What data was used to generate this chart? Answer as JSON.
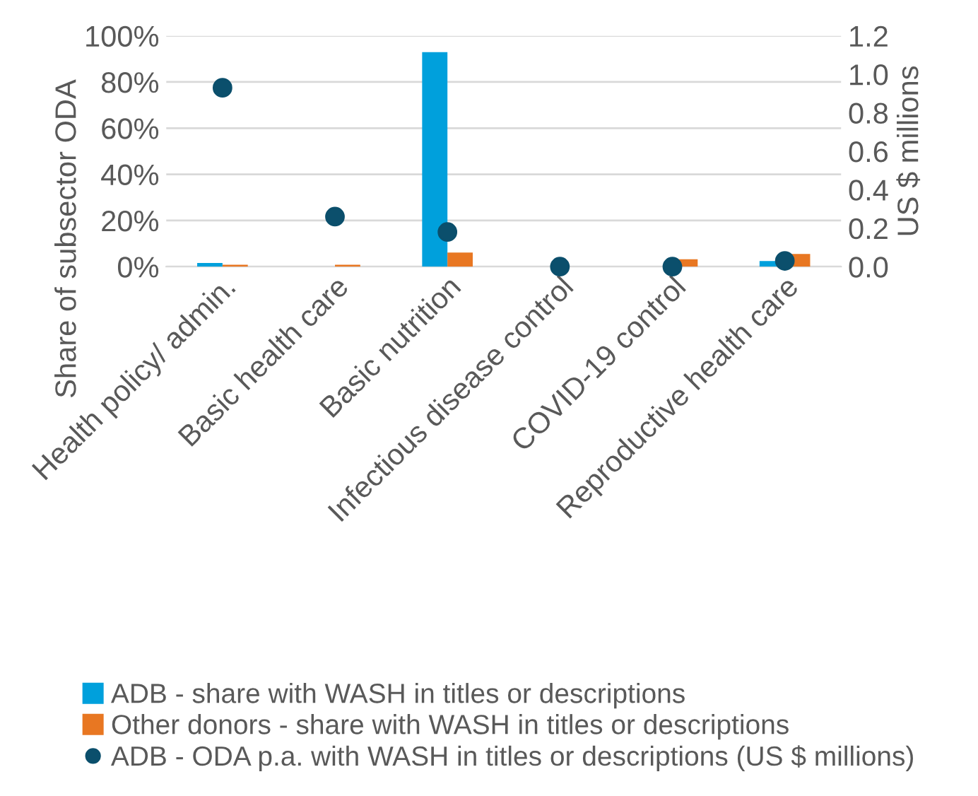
{
  "chart_data": {
    "type": "bar",
    "ylabel": "Share of subsector ODA",
    "y2label": "US $ millions",
    "categories": [
      "Health policy/ admin.",
      "Basic health care",
      "Basic nutrition",
      "Infectious disease control",
      "COVID-19 control",
      "Reproductive health care"
    ],
    "series": [
      {
        "name": "ADB - share with WASH in titles or descriptions",
        "color": "#00a0dc",
        "values": [
          1.6,
          0,
          92.9,
          0,
          0,
          2.4
        ]
      },
      {
        "name": "Other donors - share with WASH in titles or descriptions",
        "color": "#e87722",
        "values": [
          0.8,
          0.8,
          6.1,
          0,
          3.2,
          5.5
        ]
      },
      {
        "name": "ADB - ODA p.a. with WASH in titles or descriptions (US $ millions)",
        "color": "#0b4f6c",
        "type": "scatter",
        "axis": "y2",
        "marker": "circle",
        "values": [
          0.93,
          0.26,
          0.18,
          0,
          0,
          0.03
        ]
      }
    ],
    "ylim": [
      0,
      100
    ],
    "yticks": [
      {
        "value": 0,
        "label": "0%"
      },
      {
        "value": 20,
        "label": "20%"
      },
      {
        "value": 40,
        "label": "40%"
      },
      {
        "value": 60,
        "label": "60%"
      },
      {
        "value": 80,
        "label": "80%"
      },
      {
        "value": 100,
        "label": "100%"
      }
    ],
    "y2lim": [
      0,
      1.2
    ],
    "y2ticks": [
      {
        "value": 0,
        "label": "0.0"
      },
      {
        "value": 0.2,
        "label": "0.2"
      },
      {
        "value": 0.4,
        "label": "0.4"
      },
      {
        "value": 0.6,
        "label": "0.6"
      },
      {
        "value": 0.8,
        "label": "0.8"
      },
      {
        "value": 1.0,
        "label": "1.0"
      },
      {
        "value": 1.2,
        "label": "1.2"
      }
    ],
    "grid": "y",
    "legend": "bottom"
  }
}
